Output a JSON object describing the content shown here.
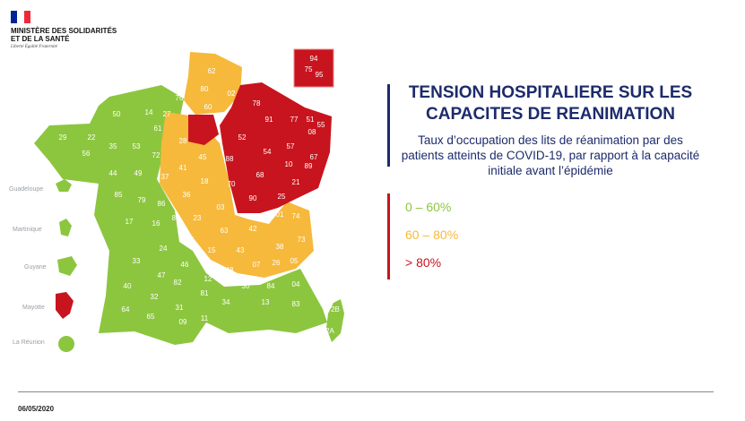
{
  "header": {
    "ministry_name": "MINISTÈRE DES SOLIDARITÉS ET DE LA SANTÉ",
    "motto": "Liberté Égalité Fraternité",
    "flag_colors": [
      "#002395",
      "#ffffff",
      "#ed2939"
    ]
  },
  "title": "TENSION HOSPITALIERE SUR LES CAPACITES DE REANIMATION",
  "subtitle": "Taux d’occupation des lits de réanimation par des patients atteints de COVID-19, par rapport à la capacité initiale avant l’épidémie",
  "legend": [
    {
      "label": "0 – 60%",
      "color": "#8cc63f"
    },
    {
      "label": "60 – 80%",
      "color": "#f6b93b"
    },
    {
      "label": "> 80%",
      "color": "#c8141e"
    }
  ],
  "colors": {
    "green": "#8cc63f",
    "orange": "#f6b93b",
    "red": "#c8141e",
    "navy": "#1d2b6b"
  },
  "overseas": [
    {
      "name": "Guadeloupe",
      "class": "green"
    },
    {
      "name": "Martinique",
      "class": "green"
    },
    {
      "name": "Guyane",
      "class": "green"
    },
    {
      "name": "Mayotte",
      "class": "red"
    },
    {
      "name": "La Réunion",
      "class": "green"
    }
  ],
  "departments": {
    "red": [
      "75",
      "92",
      "93",
      "94",
      "95",
      "78",
      "91",
      "77",
      "08",
      "51",
      "55",
      "54",
      "57",
      "67",
      "52",
      "88",
      "68",
      "10",
      "89",
      "21",
      "70",
      "90",
      "25",
      "58",
      "71",
      "39"
    ],
    "orange": [
      "62",
      "59",
      "80",
      "02",
      "60",
      "76",
      "27",
      "28",
      "45",
      "41",
      "37",
      "18",
      "36",
      "03",
      "63",
      "15",
      "43",
      "42",
      "69",
      "01",
      "74",
      "73",
      "38",
      "26",
      "07",
      "05"
    ],
    "green": [
      "50",
      "14",
      "61",
      "29",
      "22",
      "35",
      "56",
      "53",
      "72",
      "44",
      "49",
      "85",
      "79",
      "86",
      "87",
      "23",
      "16",
      "17",
      "19",
      "24",
      "33",
      "40",
      "46",
      "47",
      "82",
      "12",
      "48",
      "30",
      "84",
      "04",
      "06",
      "83",
      "13",
      "34",
      "11",
      "81",
      "31",
      "32",
      "64",
      "65",
      "09",
      "66",
      "2A",
      "2B"
    ]
  },
  "date": "06/05/2020"
}
